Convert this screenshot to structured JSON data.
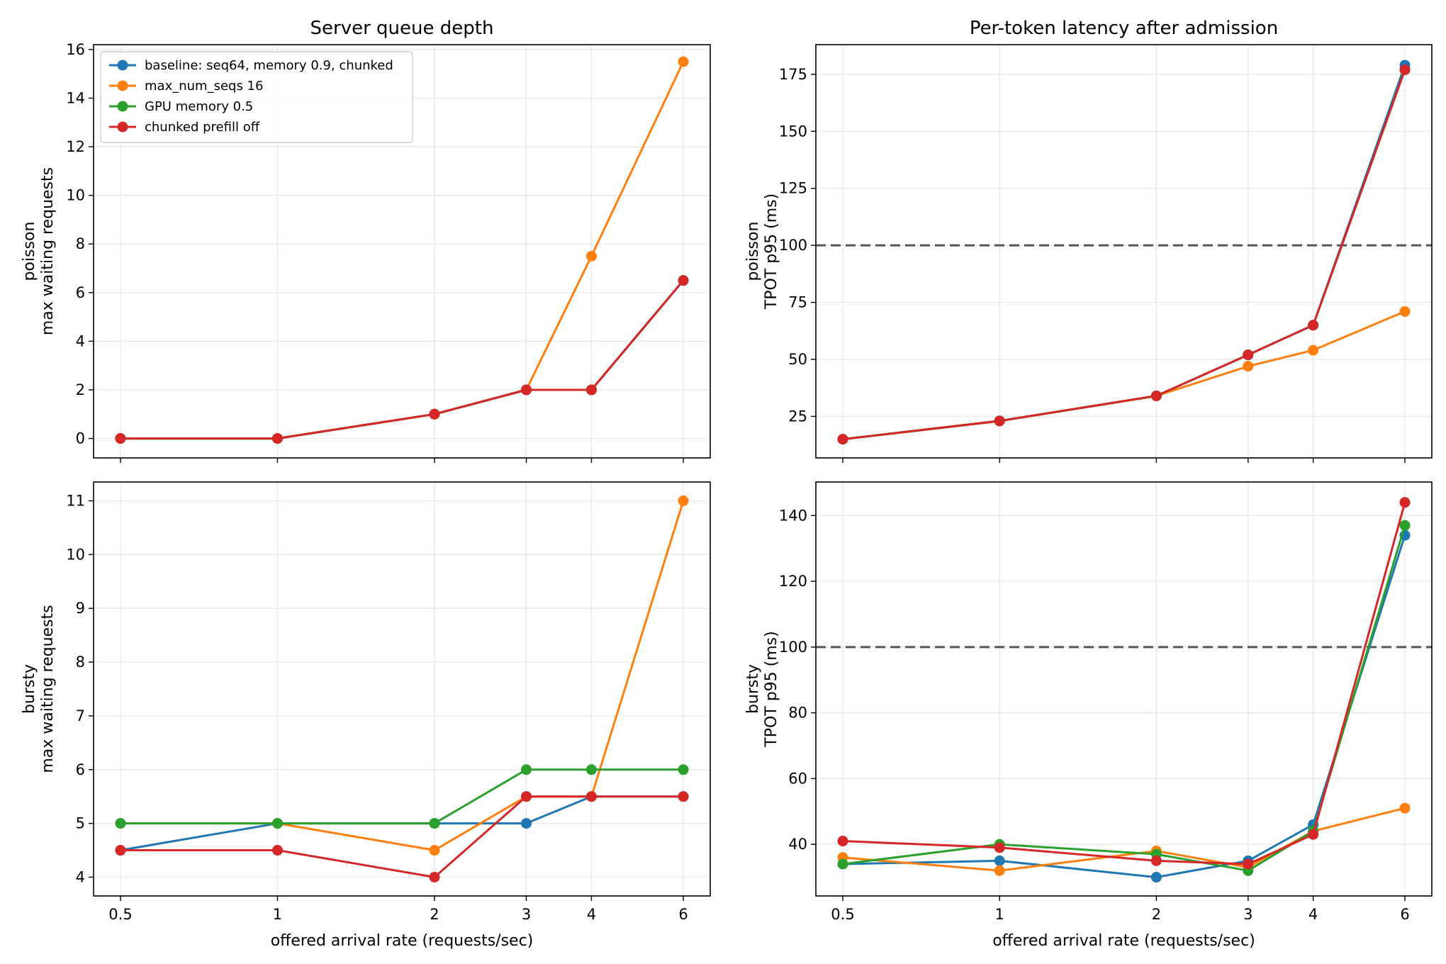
{
  "colors": {
    "baseline": "#1f77b4",
    "max_num_seqs_16": "#ff7f0e",
    "gpu_memory_05": "#2ca02c",
    "chunked_prefill_off": "#d62728",
    "reference_line": "#555555",
    "grid": "#e5e5e5"
  },
  "legend": [
    "baseline: seq64, memory 0.9, chunked",
    "max_num_seqs 16",
    "GPU memory 0.5",
    "chunked prefill off"
  ],
  "columns": {
    "left_title": "Server queue depth",
    "right_title": "Per-token latency after admission"
  },
  "x_axis_label": "offered arrival rate (requests/sec)",
  "chart_data": [
    {
      "type": "line",
      "title": "Server queue depth",
      "ylabel": [
        "poisson",
        "max waiting requests"
      ],
      "xlabel": "",
      "x_scale": "log",
      "x": [
        0.5,
        1,
        2,
        3,
        4,
        6
      ],
      "x_tick_labels": [
        "0.5",
        "1",
        "2",
        "3",
        "4",
        "6"
      ],
      "ylim": [
        -0.8,
        16.2
      ],
      "yticks": [
        0,
        2,
        4,
        6,
        8,
        10,
        12,
        14,
        16
      ],
      "grid": true,
      "legend_position": "top-left",
      "series": [
        {
          "name": "baseline: seq64, memory 0.9, chunked",
          "values": [
            0,
            0,
            1,
            2,
            2,
            6.5
          ]
        },
        {
          "name": "max_num_seqs 16",
          "values": [
            0,
            0,
            1,
            2,
            7.5,
            15.5
          ]
        },
        {
          "name": "GPU memory 0.5",
          "values": [
            0,
            0,
            1,
            2,
            2,
            6.5
          ]
        },
        {
          "name": "chunked prefill off",
          "values": [
            0,
            0,
            1,
            2,
            2,
            6.5
          ]
        }
      ]
    },
    {
      "type": "line",
      "title": "Per-token latency after admission",
      "ylabel": [
        "poisson",
        "TPOT p95 (ms)"
      ],
      "xlabel": "",
      "x_scale": "log",
      "x": [
        0.5,
        1,
        2,
        3,
        4,
        6
      ],
      "x_tick_labels": [
        "0.5",
        "1",
        "2",
        "3",
        "4",
        "6"
      ],
      "ylim": [
        6.8,
        188
      ],
      "yticks": [
        25,
        50,
        75,
        100,
        125,
        150,
        175
      ],
      "grid": true,
      "reference_line": 100,
      "series": [
        {
          "name": "baseline: seq64, memory 0.9, chunked",
          "values": [
            15,
            23,
            34,
            52,
            65,
            179
          ]
        },
        {
          "name": "max_num_seqs 16",
          "values": [
            15,
            23,
            34,
            47,
            54,
            71
          ]
        },
        {
          "name": "GPU memory 0.5",
          "values": [
            15,
            23,
            34,
            52,
            65,
            177
          ]
        },
        {
          "name": "chunked prefill off",
          "values": [
            15,
            23,
            34,
            52,
            65,
            177
          ]
        }
      ]
    },
    {
      "type": "line",
      "title": "",
      "ylabel": [
        "bursty",
        "max waiting requests"
      ],
      "xlabel": "offered arrival rate (requests/sec)",
      "x_scale": "log",
      "x": [
        0.5,
        1,
        2,
        3,
        4,
        6
      ],
      "x_tick_labels": [
        "0.5",
        "1",
        "2",
        "3",
        "4",
        "6"
      ],
      "ylim": [
        3.65,
        11.35
      ],
      "yticks": [
        4,
        5,
        6,
        7,
        8,
        9,
        10,
        11
      ],
      "grid": true,
      "series": [
        {
          "name": "baseline: seq64, memory 0.9, chunked",
          "values": [
            4.5,
            5,
            5,
            5,
            5.5,
            5.5
          ]
        },
        {
          "name": "max_num_seqs 16",
          "values": [
            5,
            5,
            4.5,
            5.5,
            5.5,
            11
          ]
        },
        {
          "name": "GPU memory 0.5",
          "values": [
            5,
            5,
            5,
            6,
            6,
            6
          ]
        },
        {
          "name": "chunked prefill off",
          "values": [
            4.5,
            4.5,
            4,
            5.5,
            5.5,
            5.5
          ]
        }
      ]
    },
    {
      "type": "line",
      "title": "",
      "ylabel": [
        "bursty",
        "TPOT p95 (ms)"
      ],
      "xlabel": "offered arrival rate (requests/sec)",
      "x_scale": "log",
      "x": [
        0.5,
        1,
        2,
        3,
        4,
        6
      ],
      "x_tick_labels": [
        "0.5",
        "1",
        "2",
        "3",
        "4",
        "6"
      ],
      "ylim": [
        24.3,
        150.2
      ],
      "yticks": [
        40,
        60,
        80,
        100,
        120,
        140
      ],
      "grid": true,
      "reference_line": 100,
      "series": [
        {
          "name": "baseline: seq64, memory 0.9, chunked",
          "values": [
            34,
            35,
            30,
            35,
            46,
            134
          ]
        },
        {
          "name": "max_num_seqs 16",
          "values": [
            36,
            32,
            38,
            33,
            44,
            51
          ]
        },
        {
          "name": "GPU memory 0.5",
          "values": [
            34,
            40,
            37,
            32,
            44,
            137
          ]
        },
        {
          "name": "chunked prefill off",
          "values": [
            41,
            39,
            35,
            34,
            43,
            144
          ]
        }
      ]
    }
  ]
}
